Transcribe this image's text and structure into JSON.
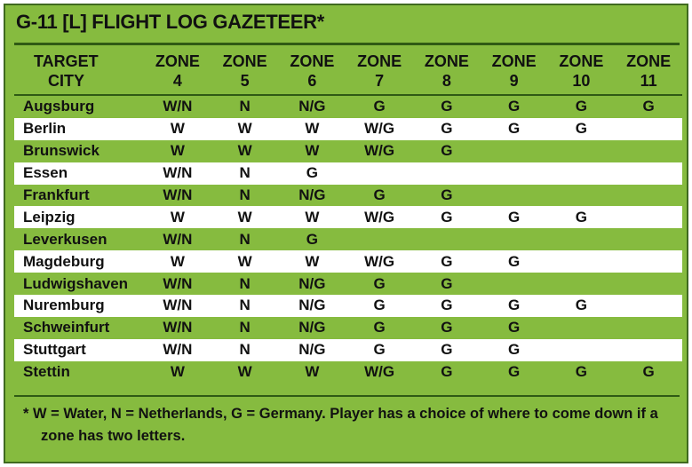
{
  "title": "G-11 [L] FLIGHT LOG GAZETEER*",
  "header": {
    "city_line1": "TARGET",
    "city_line2": "CITY",
    "zone_word": "ZONE",
    "zones": [
      "4",
      "5",
      "6",
      "7",
      "8",
      "9",
      "10",
      "11"
    ]
  },
  "rows": [
    {
      "city": "Augsburg",
      "cells": [
        "W/N",
        "N",
        "N/G",
        "G",
        "G",
        "G",
        "G",
        "G"
      ]
    },
    {
      "city": "Berlin",
      "cells": [
        "W",
        "W",
        "W",
        "W/G",
        "G",
        "G",
        "G",
        ""
      ]
    },
    {
      "city": "Brunswick",
      "cells": [
        "W",
        "W",
        "W",
        "W/G",
        "G",
        "",
        "",
        ""
      ]
    },
    {
      "city": "Essen",
      "cells": [
        "W/N",
        "N",
        "G",
        "",
        "",
        "",
        "",
        ""
      ]
    },
    {
      "city": "Frankfurt",
      "cells": [
        "W/N",
        "N",
        "N/G",
        "G",
        "G",
        "",
        "",
        ""
      ]
    },
    {
      "city": "Leipzig",
      "cells": [
        "W",
        "W",
        "W",
        "W/G",
        "G",
        "G",
        "G",
        ""
      ]
    },
    {
      "city": "Leverkusen",
      "cells": [
        "W/N",
        "N",
        "G",
        "",
        "",
        "",
        "",
        ""
      ]
    },
    {
      "city": "Magdeburg",
      "cells": [
        "W",
        "W",
        "W",
        "W/G",
        "G",
        "G",
        "",
        ""
      ]
    },
    {
      "city": "Ludwigshaven",
      "cells": [
        "W/N",
        "N",
        "N/G",
        "G",
        "G",
        "",
        "",
        ""
      ]
    },
    {
      "city": "Nuremburg",
      "cells": [
        "W/N",
        "N",
        "N/G",
        "G",
        "G",
        "G",
        "G",
        ""
      ]
    },
    {
      "city": "Schweinfurt",
      "cells": [
        "W/N",
        "N",
        "N/G",
        "G",
        "G",
        "G",
        "",
        ""
      ]
    },
    {
      "city": "Stuttgart",
      "cells": [
        "W/N",
        "N",
        "N/G",
        "G",
        "G",
        "G",
        "",
        ""
      ]
    },
    {
      "city": "Stettin",
      "cells": [
        "W",
        "W",
        "W",
        "W/G",
        "G",
        "G",
        "G",
        "G"
      ]
    }
  ],
  "footnote": "* W = Water, N = Netherlands, G = Germany. Player has a choice of where to come down if a zone has two letters.",
  "colors": {
    "panel_green": "#86bb3f",
    "stripe_white": "#ffffff",
    "rule_dark_green": "#2f5a14"
  }
}
